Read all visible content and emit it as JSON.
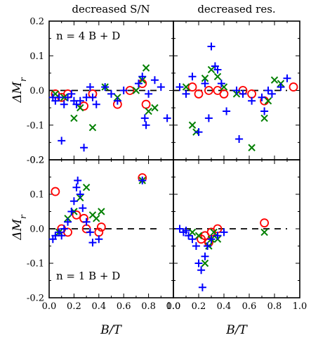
{
  "column_titles": [
    "decreased S/N",
    "decreased res."
  ],
  "ylabel": "ΔM_r",
  "xlabel": "B/T",
  "row_annotations": [
    "n = 4 B + D",
    "n = 1 B + D"
  ],
  "colors": {
    "blue": "#0000ff",
    "green": "#007f00",
    "red": "#ff0000"
  },
  "chart_data": [
    {
      "type": "scatter",
      "panel": "top-left",
      "xlim": [
        0,
        1
      ],
      "ylim": [
        -0.2,
        0.2
      ],
      "xticks": [],
      "yticks": [
        "0.2",
        "0.1",
        "0.0",
        "-0.1",
        "-0.2"
      ],
      "annotation": "n = 4 B + D",
      "reference_line_y": 0,
      "series": [
        {
          "marker": "plus",
          "color": "#0000ff",
          "points": [
            [
              0.03,
              -0.02
            ],
            [
              0.05,
              -0.03
            ],
            [
              0.08,
              -0.02
            ],
            [
              0.1,
              -0.145
            ],
            [
              0.12,
              -0.04
            ],
            [
              0.15,
              -0.02
            ],
            [
              0.18,
              -0.01
            ],
            [
              0.2,
              -0.03
            ],
            [
              0.22,
              -0.04
            ],
            [
              0.25,
              -0.03
            ],
            [
              0.28,
              -0.165
            ],
            [
              0.3,
              -0.02
            ],
            [
              0.33,
              0.01
            ],
            [
              0.35,
              -0.02
            ],
            [
              0.38,
              -0.04
            ],
            [
              0.45,
              0.01
            ],
            [
              0.5,
              -0.01
            ],
            [
              0.55,
              -0.03
            ],
            [
              0.6,
              0.0
            ],
            [
              0.72,
              0.02
            ],
            [
              0.75,
              0.04
            ],
            [
              0.77,
              -0.08
            ],
            [
              0.78,
              -0.1
            ],
            [
              0.8,
              -0.01
            ],
            [
              0.85,
              0.03
            ],
            [
              0.9,
              0.01
            ],
            [
              0.95,
              -0.08
            ]
          ]
        },
        {
          "marker": "x",
          "color": "#007f00",
          "points": [
            [
              0.05,
              -0.01
            ],
            [
              0.12,
              -0.02
            ],
            [
              0.2,
              -0.08
            ],
            [
              0.25,
              -0.05
            ],
            [
              0.35,
              -0.107
            ],
            [
              0.45,
              0.01
            ],
            [
              0.55,
              -0.02
            ],
            [
              0.7,
              0.0
            ],
            [
              0.75,
              0.03
            ],
            [
              0.78,
              0.065
            ],
            [
              0.8,
              -0.06
            ],
            [
              0.85,
              -0.05
            ]
          ]
        },
        {
          "marker": "circle",
          "color": "#ff0000",
          "points": [
            [
              0.05,
              -0.01
            ],
            [
              0.1,
              -0.02
            ],
            [
              0.15,
              -0.01
            ],
            [
              0.28,
              -0.045
            ],
            [
              0.35,
              -0.01
            ],
            [
              0.55,
              -0.04
            ],
            [
              0.65,
              0.0
            ],
            [
              0.75,
              0.02
            ],
            [
              0.78,
              -0.04
            ]
          ]
        }
      ]
    },
    {
      "type": "scatter",
      "panel": "top-right",
      "xlim": [
        0,
        1
      ],
      "ylim": [
        -0.2,
        0.2
      ],
      "xticks": [],
      "yticks": [],
      "reference_line_y": 0,
      "series": [
        {
          "marker": "plus",
          "color": "#0000ff",
          "points": [
            [
              0.05,
              0.01
            ],
            [
              0.1,
              -0.01
            ],
            [
              0.15,
              0.04
            ],
            [
              0.2,
              -0.12
            ],
            [
              0.25,
              0.02
            ],
            [
              0.28,
              -0.08
            ],
            [
              0.3,
              0.127
            ],
            [
              0.33,
              0.07
            ],
            [
              0.35,
              0.06
            ],
            [
              0.38,
              0.02
            ],
            [
              0.42,
              -0.06
            ],
            [
              0.5,
              0.0
            ],
            [
              0.52,
              -0.14
            ],
            [
              0.55,
              -0.01
            ],
            [
              0.62,
              -0.03
            ],
            [
              0.7,
              -0.02
            ],
            [
              0.72,
              -0.06
            ],
            [
              0.75,
              0.0
            ],
            [
              0.78,
              -0.01
            ],
            [
              0.85,
              0.01
            ],
            [
              0.9,
              0.035
            ]
          ]
        },
        {
          "marker": "x",
          "color": "#007f00",
          "points": [
            [
              0.1,
              0.01
            ],
            [
              0.15,
              -0.1
            ],
            [
              0.18,
              -0.12
            ],
            [
              0.25,
              0.035
            ],
            [
              0.3,
              0.06
            ],
            [
              0.35,
              0.04
            ],
            [
              0.4,
              0.01
            ],
            [
              0.5,
              -0.01
            ],
            [
              0.62,
              -0.165
            ],
            [
              0.72,
              -0.08
            ],
            [
              0.75,
              -0.03
            ],
            [
              0.8,
              0.03
            ],
            [
              0.85,
              0.02
            ]
          ]
        },
        {
          "marker": "circle",
          "color": "#ff0000",
          "points": [
            [
              0.15,
              0.01
            ],
            [
              0.2,
              -0.01
            ],
            [
              0.28,
              0.0
            ],
            [
              0.35,
              0.0
            ],
            [
              0.4,
              -0.01
            ],
            [
              0.55,
              0.0
            ],
            [
              0.62,
              -0.01
            ],
            [
              0.72,
              -0.03
            ],
            [
              0.95,
              0.01
            ]
          ]
        }
      ]
    },
    {
      "type": "scatter",
      "panel": "bottom-left",
      "xlim": [
        0,
        1
      ],
      "ylim": [
        -0.2,
        0.2
      ],
      "xticks": [
        "0.0",
        "0.2",
        "0.4",
        "0.6",
        "0.8",
        "1.0"
      ],
      "yticks": [
        "0.2",
        "0.1",
        "0.0",
        "-0.1",
        "-0.2"
      ],
      "annotation": "n = 1 B + D",
      "reference_line_y": 0,
      "series": [
        {
          "marker": "plus",
          "color": "#0000ff",
          "points": [
            [
              0.03,
              -0.03
            ],
            [
              0.05,
              -0.02
            ],
            [
              0.08,
              -0.01
            ],
            [
              0.1,
              -0.02
            ],
            [
              0.12,
              0.0
            ],
            [
              0.15,
              0.02
            ],
            [
              0.18,
              0.05
            ],
            [
              0.2,
              0.08
            ],
            [
              0.22,
              0.12
            ],
            [
              0.23,
              0.14
            ],
            [
              0.25,
              0.1
            ],
            [
              0.27,
              0.06
            ],
            [
              0.3,
              0.02
            ],
            [
              0.33,
              -0.01
            ],
            [
              0.35,
              -0.04
            ],
            [
              0.4,
              -0.03
            ],
            [
              0.75,
              0.14
            ]
          ]
        },
        {
          "marker": "x",
          "color": "#007f00",
          "points": [
            [
              0.08,
              -0.01
            ],
            [
              0.15,
              0.03
            ],
            [
              0.2,
              0.05
            ],
            [
              0.25,
              0.09
            ],
            [
              0.3,
              0.12
            ],
            [
              0.35,
              0.04
            ],
            [
              0.38,
              0.03
            ],
            [
              0.42,
              0.05
            ],
            [
              0.75,
              0.14
            ]
          ]
        },
        {
          "marker": "circle",
          "color": "#ff0000",
          "points": [
            [
              0.05,
              0.108
            ],
            [
              0.1,
              0.0
            ],
            [
              0.15,
              -0.01
            ],
            [
              0.22,
              0.04
            ],
            [
              0.28,
              0.03
            ],
            [
              0.3,
              0.0
            ],
            [
              0.4,
              -0.01
            ],
            [
              0.42,
              0.005
            ],
            [
              0.75,
              0.148
            ]
          ]
        }
      ]
    },
    {
      "type": "scatter",
      "panel": "bottom-right",
      "xlim": [
        0,
        1
      ],
      "ylim": [
        -0.2,
        0.2
      ],
      "xticks": [
        "0.0",
        "0.2",
        "0.4",
        "0.6",
        "0.8",
        "1.0"
      ],
      "yticks": [],
      "reference_line_y": 0,
      "series": [
        {
          "marker": "plus",
          "color": "#0000ff",
          "points": [
            [
              0.05,
              0.0
            ],
            [
              0.08,
              -0.01
            ],
            [
              0.1,
              -0.005
            ],
            [
              0.12,
              -0.02
            ],
            [
              0.15,
              -0.03
            ],
            [
              0.18,
              -0.05
            ],
            [
              0.2,
              -0.1
            ],
            [
              0.22,
              -0.12
            ],
            [
              0.23,
              -0.17
            ],
            [
              0.25,
              -0.08
            ],
            [
              0.27,
              -0.05
            ],
            [
              0.3,
              -0.03
            ],
            [
              0.35,
              -0.02
            ],
            [
              0.4,
              -0.01
            ]
          ]
        },
        {
          "marker": "x",
          "color": "#007f00",
          "points": [
            [
              0.15,
              -0.01
            ],
            [
              0.2,
              -0.02
            ],
            [
              0.25,
              -0.1
            ],
            [
              0.28,
              -0.05
            ],
            [
              0.3,
              -0.03
            ],
            [
              0.32,
              -0.01
            ],
            [
              0.35,
              -0.03
            ],
            [
              0.72,
              -0.01
            ]
          ]
        },
        {
          "marker": "circle",
          "color": "#ff0000",
          "points": [
            [
              0.22,
              -0.03
            ],
            [
              0.25,
              -0.02
            ],
            [
              0.28,
              -0.04
            ],
            [
              0.3,
              -0.01
            ],
            [
              0.35,
              0.0
            ],
            [
              0.72,
              0.017
            ]
          ]
        }
      ]
    }
  ]
}
